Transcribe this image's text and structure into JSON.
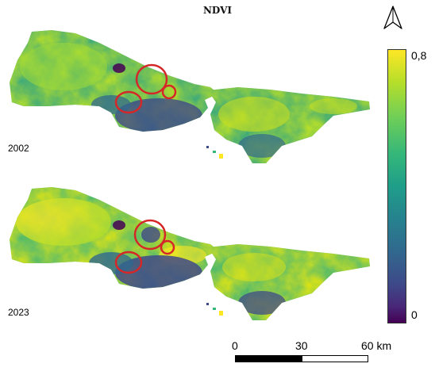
{
  "title": "NDVI",
  "maps": [
    {
      "year": "2002"
    },
    {
      "year": "2023"
    }
  ],
  "colorbar": {
    "max_label": "0,8",
    "min_label": "0",
    "colormap": "viridis",
    "top_color": "#fde725",
    "bottom_color": "#440154"
  },
  "scalebar": {
    "labels": [
      "0",
      "30",
      "60 km"
    ]
  },
  "highlight_color": "#d62728",
  "north_arrow_icon": "north-arrow-icon"
}
